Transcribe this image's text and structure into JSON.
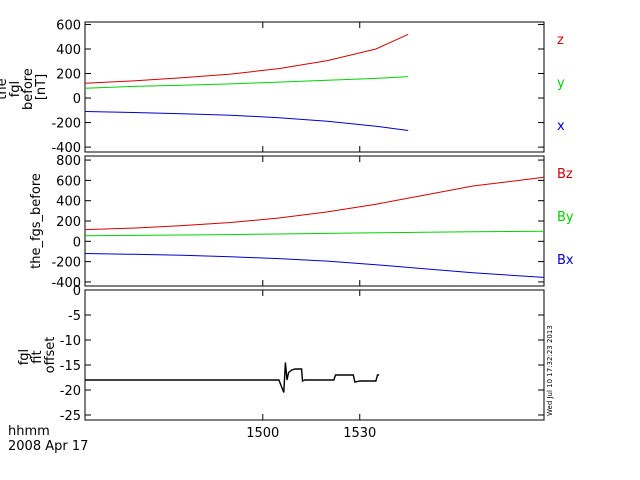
{
  "figure": {
    "xaxis": {
      "label_line1": "hhmm",
      "label_line2": "2008 Apr 17",
      "ticks": [
        1500,
        1530
      ],
      "tick_labels": [
        "1500",
        "1530"
      ],
      "range": [
        1445,
        1587
      ]
    },
    "timestamp": "Wed Jul 10 17:32:23 2013"
  },
  "chart_data": [
    {
      "type": "line",
      "ylabel_lines": [
        "the",
        "fgl",
        "before",
        "[nT]"
      ],
      "ylim": [
        -440,
        620
      ],
      "yticks": [
        -400,
        -200,
        0,
        200,
        400,
        600
      ],
      "ytick_labels": [
        "-400",
        "-200",
        "0",
        "200",
        "400",
        "600"
      ],
      "legend_placement": "right",
      "series": [
        {
          "name": "z",
          "color": "#d40000",
          "x": [
            1445,
            1460,
            1475,
            1490,
            1505,
            1520,
            1535,
            1545
          ],
          "y": [
            120,
            140,
            165,
            195,
            240,
            305,
            400,
            520
          ]
        },
        {
          "name": "y",
          "color": "#00d400",
          "x": [
            1445,
            1460,
            1475,
            1490,
            1505,
            1520,
            1535,
            1545
          ],
          "y": [
            80,
            95,
            105,
            115,
            130,
            145,
            160,
            175
          ]
        },
        {
          "name": "x",
          "color": "#0000d4",
          "x": [
            1445,
            1460,
            1475,
            1490,
            1505,
            1520,
            1535,
            1545
          ],
          "y": [
            -110,
            -118,
            -128,
            -140,
            -160,
            -190,
            -230,
            -265
          ]
        }
      ]
    },
    {
      "type": "line",
      "ylabel_lines": [
        "the_fgs_before"
      ],
      "ylim": [
        -440,
        840
      ],
      "yticks": [
        -400,
        -200,
        0,
        200,
        400,
        600,
        800
      ],
      "ytick_labels": [
        "-400",
        "-200",
        "0",
        "200",
        "400",
        "600",
        "800"
      ],
      "legend_placement": "right",
      "series": [
        {
          "name": "Bz",
          "color": "#d40000",
          "x": [
            1445,
            1460,
            1475,
            1490,
            1505,
            1520,
            1535,
            1550,
            1565,
            1587
          ],
          "y": [
            115,
            130,
            155,
            185,
            230,
            290,
            365,
            455,
            545,
            630
          ]
        },
        {
          "name": "By",
          "color": "#00d400",
          "x": [
            1445,
            1460,
            1475,
            1490,
            1505,
            1520,
            1535,
            1550,
            1565,
            1587
          ],
          "y": [
            55,
            58,
            62,
            66,
            72,
            78,
            84,
            90,
            95,
            100
          ]
        },
        {
          "name": "Bx",
          "color": "#0000d4",
          "x": [
            1445,
            1460,
            1475,
            1490,
            1505,
            1520,
            1535,
            1550,
            1565,
            1587
          ],
          "y": [
            -120,
            -128,
            -138,
            -152,
            -170,
            -195,
            -230,
            -270,
            -310,
            -355
          ]
        }
      ]
    },
    {
      "type": "line",
      "ylabel_lines": [
        "fgl",
        "fit",
        "offset"
      ],
      "ylim": [
        -26,
        0
      ],
      "yticks": [
        -25,
        -20,
        -15,
        -10,
        -5,
        0
      ],
      "ytick_labels": [
        "-25",
        "-20",
        "-15",
        "-10",
        "-5",
        "0"
      ],
      "series": [
        {
          "color": "#000000",
          "x": [
            1445,
            1460,
            1475,
            1490,
            1505,
            1506.5,
            1507,
            1507.5,
            1508,
            1509,
            1510,
            1511,
            1512,
            1512.3,
            1513,
            1515,
            1520,
            1522,
            1522.5,
            1525,
            1528,
            1528.5,
            1530,
            1533,
            1535,
            1535.5,
            1536
          ],
          "y": [
            -18,
            -18,
            -18,
            -18,
            -18,
            -20.5,
            -14.5,
            -18,
            -16.5,
            -16,
            -15.8,
            -15.8,
            -15.8,
            -18.2,
            -18,
            -18,
            -18,
            -18,
            -17,
            -17,
            -17,
            -18.4,
            -18.2,
            -18.2,
            -18.2,
            -17,
            -17
          ]
        }
      ]
    }
  ]
}
